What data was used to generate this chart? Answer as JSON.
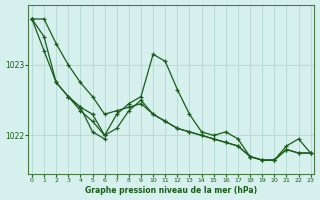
{
  "title": "Graphe pression niveau de la mer (hPa)",
  "bg_color": "#d6f0ee",
  "grid_color": "#b8dbd8",
  "line_color": "#1a5c1a",
  "x_ticks": [
    0,
    1,
    2,
    3,
    4,
    5,
    6,
    7,
    8,
    9,
    10,
    11,
    12,
    13,
    14,
    15,
    16,
    17,
    18,
    19,
    20,
    21,
    22,
    23
  ],
  "y_ticks": [
    1022,
    1023
  ],
  "ylim": [
    1021.45,
    1023.85
  ],
  "xlim": [
    -0.3,
    23.3
  ],
  "series": [
    [
      1023.65,
      1023.65,
      1023.3,
      1023.0,
      1022.75,
      1022.55,
      1022.3,
      1022.35,
      1022.4,
      1022.45,
      1022.3,
      1022.2,
      1022.1,
      1022.05,
      1022.0,
      1021.95,
      1021.9,
      1021.85,
      1021.7,
      1021.65,
      1021.65,
      1021.8,
      1021.75,
      1021.75
    ],
    [
      1023.65,
      1023.2,
      1022.75,
      1022.55,
      1022.4,
      1022.3,
      1022.0,
      1022.3,
      1022.45,
      1022.55,
      1023.15,
      1023.05,
      1022.65,
      1022.3,
      1022.05,
      1022.0,
      1022.05,
      1021.95,
      1021.7,
      1021.65,
      1021.65,
      1021.85,
      1021.95,
      1021.75
    ],
    [
      1023.65,
      1023.4,
      1022.75,
      1022.55,
      1022.35,
      1022.2,
      1022.0,
      1022.1,
      1022.35,
      1022.5,
      1022.3,
      1022.2,
      1022.1,
      1022.05,
      1022.0,
      1021.95,
      1021.9,
      1021.85,
      1021.7,
      1021.65,
      1021.65,
      1021.8,
      1021.75,
      1021.75
    ],
    [
      1023.65,
      null,
      null,
      1022.55,
      1022.4,
      1022.05,
      1021.95,
      null,
      null,
      null,
      null,
      null,
      null,
      null,
      null,
      null,
      null,
      null,
      null,
      null,
      null,
      null,
      null,
      null
    ]
  ]
}
